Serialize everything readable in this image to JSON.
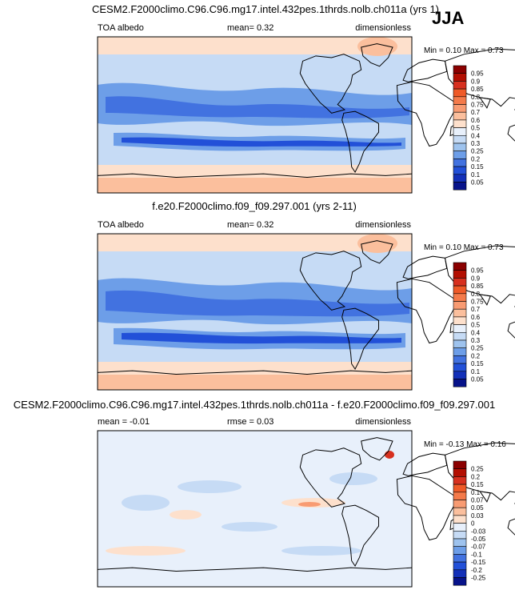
{
  "season": "JJA",
  "chart_data": [
    {
      "type": "heatmap",
      "title": "CESM2.F2000climo.C96.C96.mg17.intel.432pes.1thrds.nolb.ch011a (yrs 1)",
      "left_label": "TOA albedo",
      "center_label": "mean=   0.32",
      "right_label": "dimensionless",
      "range_label": "Min =  0.10 Max =  0.73",
      "min": 0.1,
      "max": 0.73,
      "mean": 0.32,
      "colorbar": {
        "levels": [
          "0.95",
          "0.9",
          "0.85",
          "0.8",
          "0.75",
          "0.7",
          "0.6",
          "0.5",
          "0.4",
          "0.3",
          "0.25",
          "0.2",
          "0.15",
          "0.1",
          "0.05"
        ],
        "colors": [
          "#8b0000",
          "#b30f02",
          "#d7301f",
          "#ef5a28",
          "#f47a4a",
          "#f89b72",
          "#fbbf9d",
          "#fde0cc",
          "#e8f0fb",
          "#c6dbf5",
          "#9ec3ee",
          "#6d9ee8",
          "#4272e0",
          "#2250d8",
          "#1330b8",
          "#07138a"
        ]
      }
    },
    {
      "type": "heatmap",
      "title": "f.e20.F2000climo.f09_f09.297.001 (yrs 2-11)",
      "left_label": "TOA albedo",
      "center_label": "mean=   0.32",
      "right_label": "dimensionless",
      "range_label": "Min =  0.10 Max =  0.73",
      "min": 0.1,
      "max": 0.73,
      "mean": 0.32,
      "colorbar": {
        "levels": [
          "0.95",
          "0.9",
          "0.85",
          "0.8",
          "0.75",
          "0.7",
          "0.6",
          "0.5",
          "0.4",
          "0.3",
          "0.25",
          "0.2",
          "0.15",
          "0.1",
          "0.05"
        ],
        "colors": [
          "#8b0000",
          "#b30f02",
          "#d7301f",
          "#ef5a28",
          "#f47a4a",
          "#f89b72",
          "#fbbf9d",
          "#fde0cc",
          "#e8f0fb",
          "#c6dbf5",
          "#9ec3ee",
          "#6d9ee8",
          "#4272e0",
          "#2250d8",
          "#1330b8",
          "#07138a"
        ]
      }
    },
    {
      "type": "heatmap",
      "title": "CESM2.F2000climo.C96.C96.mg17.intel.432pes.1thrds.nolb.ch011a - f.e20.F2000climo.f09_f09.297.001",
      "left_label": "mean =  -0.01",
      "center_label": "rmse =  0.03",
      "right_label": "dimensionless",
      "range_label": "Min =  -0.13 Max =  0.16",
      "min": -0.13,
      "max": 0.16,
      "mean": -0.01,
      "rmse": 0.03,
      "colorbar": {
        "levels": [
          "0.25",
          "0.2",
          "0.15",
          "0.1",
          "0.07",
          "0.05",
          "0.03",
          "0",
          "-0.03",
          "-0.05",
          "-0.07",
          "-0.1",
          "-0.15",
          "-0.2",
          "-0.25"
        ],
        "colors": [
          "#8b0000",
          "#b30f02",
          "#d7301f",
          "#ef5a28",
          "#f47a4a",
          "#f89b72",
          "#fbbf9d",
          "#fde0cc",
          "#e8f0fb",
          "#c6dbf5",
          "#9ec3ee",
          "#6d9ee8",
          "#4272e0",
          "#2250d8",
          "#1330b8",
          "#07138a"
        ]
      }
    }
  ]
}
